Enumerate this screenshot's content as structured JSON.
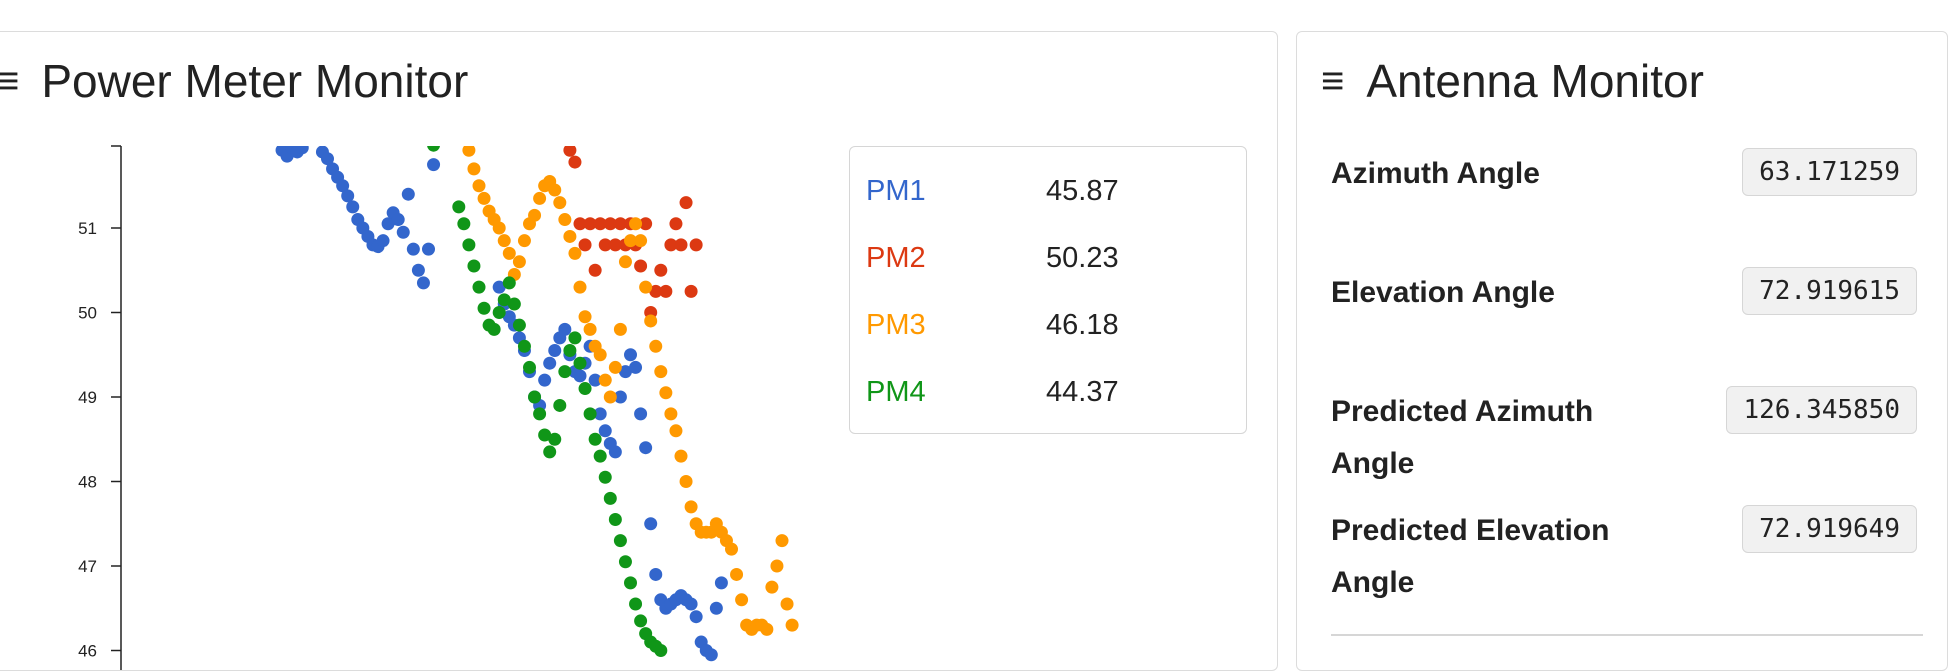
{
  "power_panel": {
    "title": "Power Meter Monitor",
    "menu_icon": "menu-icon",
    "legend": [
      {
        "name": "PM1",
        "value": "45.87",
        "color": "#3366cc"
      },
      {
        "name": "PM2",
        "value": "50.23",
        "color": "#dc3912"
      },
      {
        "name": "PM3",
        "value": "46.18",
        "color": "#ff9900"
      },
      {
        "name": "PM4",
        "value": "44.37",
        "color": "#109618"
      }
    ]
  },
  "antenna_panel": {
    "title": "Antenna Monitor",
    "menu_icon": "menu-icon",
    "rows": [
      {
        "label": "Azimuth Angle",
        "value": "63.171259"
      },
      {
        "label": "Elevation Angle",
        "value": "72.919615"
      },
      {
        "label": "Predicted Azimuth Angle",
        "value": "126.345850"
      },
      {
        "label": "Predicted Elevation Angle",
        "value": "72.919649"
      }
    ]
  },
  "chart_data": {
    "type": "scatter",
    "title": "",
    "xlabel": "",
    "ylabel": "",
    "y_ticks": [
      51,
      50,
      49,
      48,
      47,
      46
    ],
    "ylim": [
      46,
      52
    ],
    "grid": false,
    "series": [
      {
        "name": "PM1",
        "color": "#3366cc",
        "points": [
          [
            1,
            51.92
          ],
          [
            2,
            51.85
          ],
          [
            3,
            51.95
          ],
          [
            4,
            51.9
          ],
          [
            5,
            51.95
          ],
          [
            9,
            51.9
          ],
          [
            10,
            51.82
          ],
          [
            11,
            51.7
          ],
          [
            12,
            51.6
          ],
          [
            13,
            51.5
          ],
          [
            14,
            51.38
          ],
          [
            15,
            51.25
          ],
          [
            16,
            51.1
          ],
          [
            17,
            51.0
          ],
          [
            18,
            50.9
          ],
          [
            19,
            50.8
          ],
          [
            20,
            50.78
          ],
          [
            21,
            50.85
          ],
          [
            22,
            51.05
          ],
          [
            23,
            51.18
          ],
          [
            24,
            51.1
          ],
          [
            25,
            50.95
          ],
          [
            26,
            51.4
          ],
          [
            27,
            50.75
          ],
          [
            28,
            50.5
          ],
          [
            29,
            50.35
          ],
          [
            30,
            50.75
          ],
          [
            31,
            51.75
          ],
          [
            44,
            50.3
          ],
          [
            45,
            50.1
          ],
          [
            46,
            49.95
          ],
          [
            47,
            49.85
          ],
          [
            48,
            49.7
          ],
          [
            49,
            49.55
          ],
          [
            50,
            49.3
          ],
          [
            51,
            49.0
          ],
          [
            52,
            48.9
          ],
          [
            53,
            49.2
          ],
          [
            54,
            49.4
          ],
          [
            55,
            49.55
          ],
          [
            56,
            49.7
          ],
          [
            57,
            49.8
          ],
          [
            58,
            49.5
          ],
          [
            59,
            49.3
          ],
          [
            60,
            49.25
          ],
          [
            61,
            49.4
          ],
          [
            62,
            49.6
          ],
          [
            63,
            49.2
          ],
          [
            64,
            48.8
          ],
          [
            65,
            48.6
          ],
          [
            66,
            48.45
          ],
          [
            67,
            48.35
          ],
          [
            68,
            49.0
          ],
          [
            69,
            49.3
          ],
          [
            70,
            49.5
          ],
          [
            71,
            49.35
          ],
          [
            72,
            48.8
          ],
          [
            73,
            48.4
          ],
          [
            74,
            47.5
          ],
          [
            75,
            46.9
          ],
          [
            76,
            46.6
          ],
          [
            77,
            46.5
          ],
          [
            78,
            46.55
          ],
          [
            79,
            46.6
          ],
          [
            80,
            46.65
          ],
          [
            81,
            46.6
          ],
          [
            82,
            46.55
          ],
          [
            83,
            46.4
          ],
          [
            84,
            46.1
          ],
          [
            85,
            46.0
          ],
          [
            86,
            45.95
          ],
          [
            87,
            46.5
          ],
          [
            88,
            46.8
          ]
        ]
      },
      {
        "name": "PM2",
        "color": "#dc3912",
        "points": [
          [
            58,
            51.92
          ],
          [
            59,
            51.78
          ],
          [
            60,
            51.05
          ],
          [
            61,
            50.8
          ],
          [
            62,
            51.05
          ],
          [
            63,
            50.5
          ],
          [
            64,
            51.05
          ],
          [
            65,
            50.8
          ],
          [
            66,
            51.05
          ],
          [
            67,
            50.8
          ],
          [
            68,
            51.05
          ],
          [
            69,
            50.8
          ],
          [
            70,
            51.05
          ],
          [
            71,
            50.8
          ],
          [
            72,
            50.55
          ],
          [
            73,
            51.05
          ],
          [
            74,
            50.0
          ],
          [
            75,
            50.25
          ],
          [
            76,
            50.5
          ],
          [
            77,
            50.25
          ],
          [
            78,
            50.8
          ],
          [
            79,
            51.05
          ],
          [
            80,
            50.8
          ],
          [
            81,
            51.3
          ],
          [
            82,
            50.25
          ],
          [
            83,
            50.8
          ]
        ]
      },
      {
        "name": "PM3",
        "color": "#ff9900",
        "points": [
          [
            38,
            51.92
          ],
          [
            39,
            51.7
          ],
          [
            40,
            51.5
          ],
          [
            41,
            51.35
          ],
          [
            42,
            51.2
          ],
          [
            43,
            51.1
          ],
          [
            44,
            51.0
          ],
          [
            45,
            50.85
          ],
          [
            46,
            50.7
          ],
          [
            47,
            50.45
          ],
          [
            48,
            50.6
          ],
          [
            49,
            50.85
          ],
          [
            50,
            51.05
          ],
          [
            51,
            51.15
          ],
          [
            52,
            51.35
          ],
          [
            53,
            51.5
          ],
          [
            54,
            51.55
          ],
          [
            55,
            51.45
          ],
          [
            56,
            51.3
          ],
          [
            57,
            51.1
          ],
          [
            58,
            50.9
          ],
          [
            59,
            50.7
          ],
          [
            60,
            50.3
          ],
          [
            61,
            49.95
          ],
          [
            62,
            49.8
          ],
          [
            63,
            49.6
          ],
          [
            64,
            49.5
          ],
          [
            65,
            49.2
          ],
          [
            66,
            49.0
          ],
          [
            67,
            49.35
          ],
          [
            68,
            49.8
          ],
          [
            69,
            50.6
          ],
          [
            70,
            50.85
          ],
          [
            71,
            51.05
          ],
          [
            72,
            50.85
          ],
          [
            73,
            50.3
          ],
          [
            74,
            49.9
          ],
          [
            75,
            49.6
          ],
          [
            76,
            49.3
          ],
          [
            77,
            49.05
          ],
          [
            78,
            48.8
          ],
          [
            79,
            48.6
          ],
          [
            80,
            48.3
          ],
          [
            81,
            48.0
          ],
          [
            82,
            47.7
          ],
          [
            83,
            47.5
          ],
          [
            84,
            47.4
          ],
          [
            85,
            47.4
          ],
          [
            86,
            47.4
          ],
          [
            87,
            47.5
          ],
          [
            88,
            47.4
          ],
          [
            89,
            47.3
          ],
          [
            90,
            47.2
          ],
          [
            91,
            46.9
          ],
          [
            92,
            46.6
          ],
          [
            93,
            46.3
          ],
          [
            94,
            46.25
          ],
          [
            95,
            46.3
          ],
          [
            96,
            46.3
          ],
          [
            97,
            46.25
          ],
          [
            98,
            46.75
          ],
          [
            99,
            47.0
          ],
          [
            100,
            47.3
          ],
          [
            101,
            46.55
          ],
          [
            102,
            46.3
          ]
        ]
      },
      {
        "name": "PM4",
        "color": "#109618",
        "points": [
          [
            31,
            51.98
          ],
          [
            36,
            51.25
          ],
          [
            37,
            51.05
          ],
          [
            38,
            50.8
          ],
          [
            39,
            50.55
          ],
          [
            40,
            50.3
          ],
          [
            41,
            50.05
          ],
          [
            42,
            49.85
          ],
          [
            43,
            49.8
          ],
          [
            44,
            50.0
          ],
          [
            45,
            50.15
          ],
          [
            46,
            50.35
          ],
          [
            47,
            50.1
          ],
          [
            48,
            49.85
          ],
          [
            49,
            49.6
          ],
          [
            50,
            49.35
          ],
          [
            51,
            49.0
          ],
          [
            52,
            48.8
          ],
          [
            53,
            48.55
          ],
          [
            54,
            48.35
          ],
          [
            55,
            48.5
          ],
          [
            56,
            48.9
          ],
          [
            57,
            49.3
          ],
          [
            58,
            49.55
          ],
          [
            59,
            49.7
          ],
          [
            60,
            49.4
          ],
          [
            61,
            49.1
          ],
          [
            62,
            48.8
          ],
          [
            63,
            48.5
          ],
          [
            64,
            48.3
          ],
          [
            65,
            48.05
          ],
          [
            66,
            47.8
          ],
          [
            67,
            47.55
          ],
          [
            68,
            47.3
          ],
          [
            69,
            47.05
          ],
          [
            70,
            46.8
          ],
          [
            71,
            46.55
          ],
          [
            72,
            46.35
          ],
          [
            73,
            46.2
          ],
          [
            74,
            46.1
          ],
          [
            75,
            46.05
          ],
          [
            76,
            46.0
          ]
        ]
      }
    ]
  }
}
